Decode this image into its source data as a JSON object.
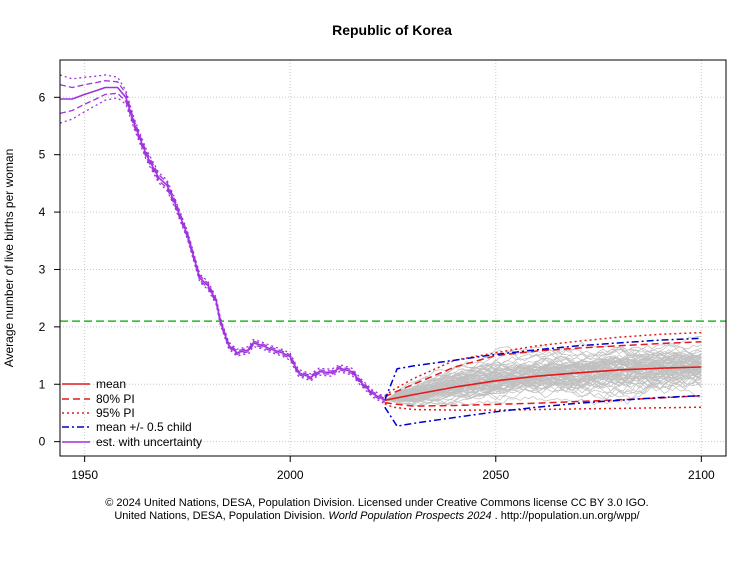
{
  "chart_data": {
    "type": "line",
    "title": "Republic of Korea",
    "xlabel": "",
    "ylabel": "Average number of live births per woman",
    "xlim": [
      1944,
      2106
    ],
    "ylim": [
      -0.25,
      6.65
    ],
    "x_ticks": [
      1950,
      2000,
      2050,
      2100
    ],
    "y_ticks": [
      0,
      1,
      2,
      3,
      4,
      5,
      6
    ],
    "grid": true,
    "replacement_level": 2.1,
    "legend_position": "bottom-left",
    "legend": [
      "mean",
      "80% PI",
      "95% PI",
      "mean +/- 0.5 child",
      "est. with uncertainty"
    ],
    "colors": {
      "mean": "#e41a1c",
      "blue": "#0000cc",
      "est": "#a033e0",
      "green": "#22bb22",
      "traj": "#c0c0c0"
    },
    "estimates": {
      "years": [
        1944,
        1947,
        1950,
        1953,
        1955,
        1958,
        1960,
        1962,
        1965,
        1968,
        1970,
        1972,
        1975,
        1978,
        1980,
        1982,
        1983,
        1985,
        1987,
        1990,
        1991,
        1993,
        1995,
        1998,
        2000,
        2002,
        2005,
        2007,
        2010,
        2012,
        2015,
        2017,
        2020,
        2023
      ],
      "value": [
        5.97,
        5.97,
        6.05,
        6.12,
        6.17,
        6.17,
        6.0,
        5.55,
        5.0,
        4.6,
        4.47,
        4.15,
        3.6,
        2.85,
        2.72,
        2.45,
        2.1,
        1.68,
        1.55,
        1.6,
        1.72,
        1.68,
        1.62,
        1.55,
        1.48,
        1.2,
        1.12,
        1.22,
        1.2,
        1.28,
        1.22,
        1.05,
        0.84,
        0.72
      ],
      "pi80_halfwidth": [
        0.25,
        0.2,
        0.17,
        0.14,
        0.12,
        0.1,
        0.07,
        0.05,
        0.05,
        0.05,
        0.05,
        0.05,
        0.04,
        0.04,
        0.04,
        0.03,
        0.03,
        0.03,
        0.03,
        0.03,
        0.03,
        0.03,
        0.03,
        0.03,
        0.03,
        0.03,
        0.03,
        0.03,
        0.03,
        0.03,
        0.03,
        0.03,
        0.03,
        0.03
      ],
      "pi95_halfwidth": [
        0.42,
        0.35,
        0.3,
        0.25,
        0.22,
        0.18,
        0.12,
        0.09,
        0.09,
        0.09,
        0.09,
        0.08,
        0.07,
        0.07,
        0.07,
        0.06,
        0.06,
        0.06,
        0.06,
        0.06,
        0.06,
        0.06,
        0.06,
        0.06,
        0.06,
        0.06,
        0.06,
        0.06,
        0.06,
        0.06,
        0.06,
        0.06,
        0.06,
        0.06
      ]
    },
    "projection": {
      "years": [
        2023,
        2025,
        2030,
        2040,
        2050,
        2060,
        2070,
        2080,
        2090,
        2100
      ],
      "mean": [
        0.72,
        0.75,
        0.82,
        0.95,
        1.06,
        1.14,
        1.2,
        1.25,
        1.28,
        1.3
      ],
      "pi80_upper": [
        0.78,
        0.85,
        1.0,
        1.3,
        1.5,
        1.58,
        1.63,
        1.67,
        1.71,
        1.74
      ],
      "pi80_lower": [
        0.68,
        0.66,
        0.62,
        0.63,
        0.65,
        0.67,
        0.7,
        0.73,
        0.76,
        0.8
      ],
      "pi95_upper": [
        0.8,
        0.9,
        1.1,
        1.42,
        1.55,
        1.67,
        1.75,
        1.82,
        1.87,
        1.9
      ],
      "pi95_lower": [
        0.66,
        0.6,
        0.56,
        0.55,
        0.55,
        0.56,
        0.57,
        0.58,
        0.59,
        0.6
      ]
    },
    "half_child": {
      "years": [
        2023,
        2026,
        2030,
        2040,
        2050,
        2060,
        2070,
        2080,
        2090,
        2100
      ],
      "upper": [
        0.72,
        1.27,
        1.32,
        1.42,
        1.52,
        1.6,
        1.67,
        1.72,
        1.77,
        1.8
      ],
      "lower": [
        0.6,
        0.27,
        0.32,
        0.42,
        0.52,
        0.6,
        0.67,
        0.72,
        0.77,
        0.8
      ]
    }
  },
  "footer": {
    "line1": "© 2024 United Nations, DESA, Population Division. Licensed under Creative Commons license CC BY 3.0 IGO.",
    "line2_a": "United Nations, DESA, Population Division. ",
    "line2_italic": "World Population Prospects 2024",
    "line2_b": " . http://population.un.org/wpp/"
  }
}
